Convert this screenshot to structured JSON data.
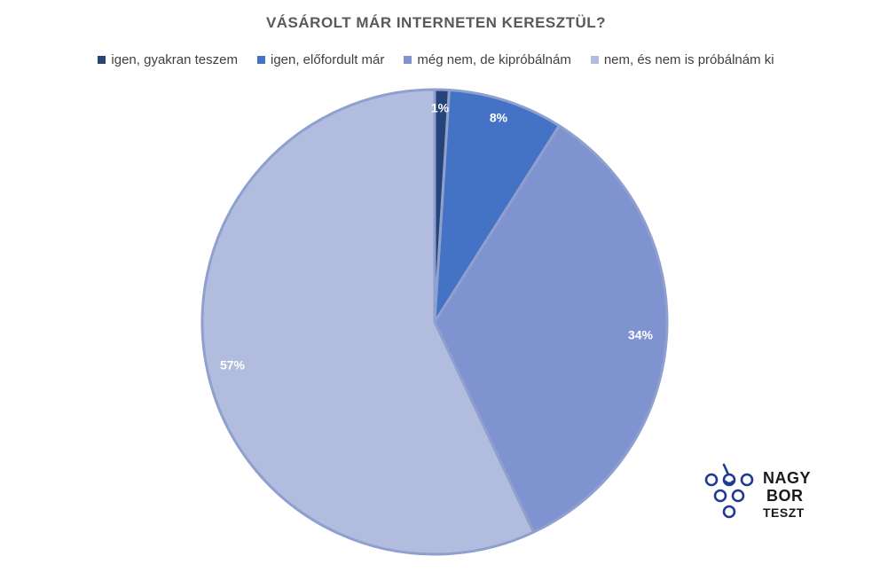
{
  "chart_data": {
    "type": "pie",
    "title": "VÁSÁROLT MÁR INTERNETEN KERESZTÜL?",
    "categories": [
      "igen, gyakran teszem",
      "igen, előfordult már",
      "még nem, de kipróbálnám",
      "nem, és nem is próbálnám ki"
    ],
    "values": [
      1,
      8,
      34,
      57
    ],
    "labels": [
      "1%",
      "8%",
      "34%",
      "57%"
    ],
    "colors": [
      "#264478",
      "#4472C4",
      "#7F93D0",
      "#B1BCDF"
    ],
    "legend_position": "top"
  },
  "logo": {
    "line1": "NAGY",
    "line2": "BOR",
    "line3": "TESZT",
    "color": "#1f3a93"
  }
}
